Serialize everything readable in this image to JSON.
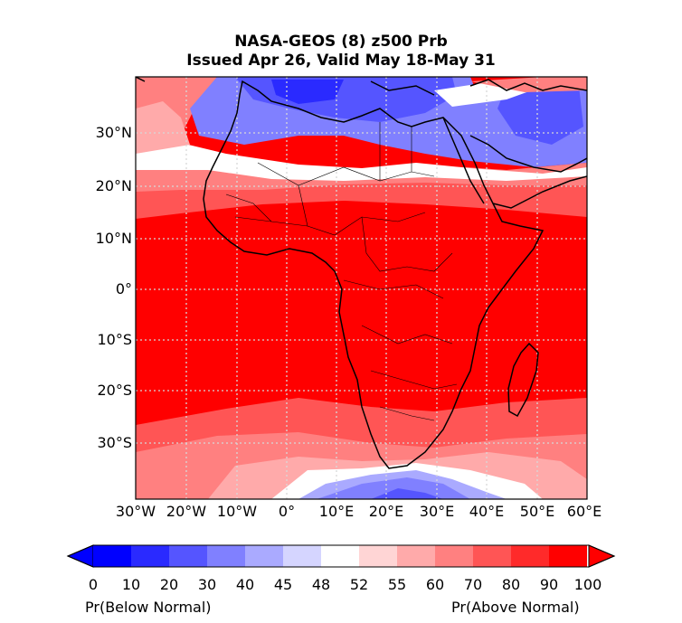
{
  "title": {
    "line1": "NASA-GEOS (8) z500 Prb",
    "line2": "Issued Apr 26, Valid May 18-May 31"
  },
  "map": {
    "region": "Africa",
    "lat_labels": [
      "30°N",
      "20°N",
      "10°N",
      "0°",
      "10°S",
      "20°S",
      "30°S"
    ],
    "lon_labels": [
      "30°W",
      "20°W",
      "10°W",
      "0°",
      "10°E",
      "20°E",
      "30°E",
      "40°E",
      "50°E",
      "60°E"
    ],
    "gridlines": true
  },
  "colorbar": {
    "ticks": [
      "0",
      "10",
      "20",
      "30",
      "40",
      "45",
      "48",
      "52",
      "55",
      "60",
      "70",
      "80",
      "90",
      "100"
    ],
    "colors": [
      "#0000ff",
      "#2a2aff",
      "#5555ff",
      "#8080ff",
      "#aaaaff",
      "#d5d5ff",
      "#ffffff",
      "#ffd5d5",
      "#ffaaaa",
      "#ff8080",
      "#ff5555",
      "#ff2a2a",
      "#ff0000"
    ],
    "below_label": "Pr(Below Normal)",
    "above_label": "Pr(Above Normal)"
  }
}
